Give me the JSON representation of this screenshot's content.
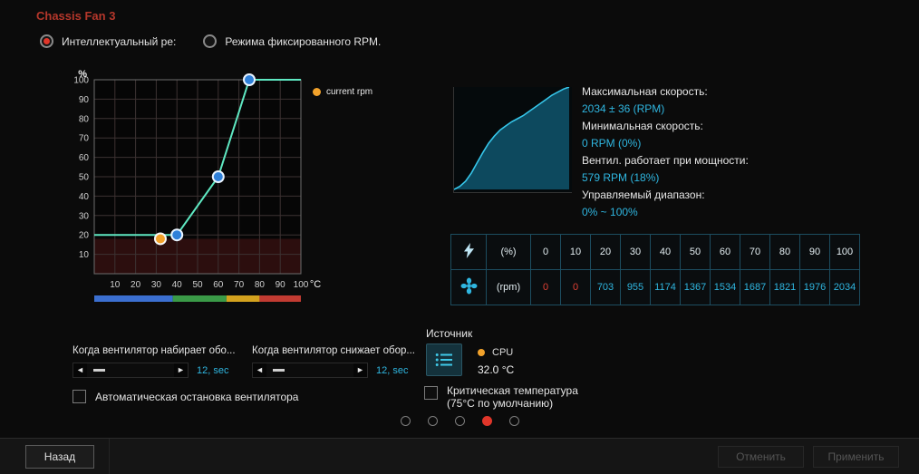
{
  "header": {
    "title": "Chassis Fan 3",
    "mode_smart": "Интеллектуальный ре:",
    "mode_fixed": "Режима фиксированного RPM."
  },
  "colors": {
    "accent_cyan": "#2fb6e0",
    "accent_red": "#e0362a",
    "accent_orange": "#f2a22b",
    "curve_green": "#5fe8c2",
    "point_blue": "#2f80d9",
    "grid": "#3c3232",
    "danger_zone_fill": "#2c0e0e",
    "response_stroke": "#36c6ea",
    "response_fill": "#0d495e"
  },
  "chart_data": [
    {
      "type": "line",
      "title": "Chassis Fan 3 fan curve",
      "xlabel": "°C",
      "ylabel": "%",
      "xlim": [
        0,
        100
      ],
      "ylim": [
        0,
        100
      ],
      "x_ticks": [
        10,
        20,
        30,
        40,
        50,
        60,
        70,
        80,
        90,
        100
      ],
      "y_ticks": [
        10,
        20,
        30,
        40,
        50,
        60,
        70,
        80,
        90,
        100
      ],
      "curve_points": [
        [
          0,
          20
        ],
        [
          40,
          20
        ],
        [
          60,
          50
        ],
        [
          75,
          100
        ],
        [
          100,
          100
        ]
      ],
      "control_points": [
        [
          40,
          20
        ],
        [
          60,
          50
        ],
        [
          75,
          100
        ]
      ],
      "current_point": {
        "x": 32,
        "y": 18
      },
      "legend": "current rpm",
      "temp_zones": [
        {
          "to": 38,
          "color": "#3b6fd0"
        },
        {
          "to": 64,
          "color": "#3a9a47"
        },
        {
          "to": 80,
          "color": "#d4a21e"
        },
        {
          "to": 100,
          "color": "#c23b32"
        }
      ]
    },
    {
      "type": "area",
      "title": "Fan response preview",
      "x": [
        0,
        5,
        10,
        15,
        20,
        25,
        30,
        35,
        40,
        45,
        50,
        55,
        60,
        65,
        70,
        75,
        80,
        85,
        90,
        95,
        100
      ],
      "values": [
        0,
        3,
        8,
        16,
        26,
        36,
        45,
        52,
        58,
        62,
        66,
        69,
        72,
        76,
        80,
        84,
        88,
        92,
        95,
        98,
        100
      ]
    }
  ],
  "stats": [
    {
      "label": "Максимальная скорость:",
      "value": "2034 ± 36 (RPM)"
    },
    {
      "label": "Минимальная скорость:",
      "value": "0 RPM (0%)"
    },
    {
      "label": "Вентил. работает при мощности:",
      "value": "579 RPM (18%)"
    },
    {
      "label": "Управляемый диапазон:",
      "value": "0% ~ 100%"
    }
  ],
  "table": {
    "row1_label": "(%)",
    "row2_label": "(rpm)",
    "percent": [
      0,
      10,
      20,
      30,
      40,
      50,
      60,
      70,
      80,
      90,
      100
    ],
    "rpm": [
      0,
      0,
      703,
      955,
      1174,
      1367,
      1534,
      1687,
      1821,
      1976,
      2034
    ]
  },
  "sliders": [
    {
      "label": "Когда вентилятор набирает обо...",
      "value": "12, sec"
    },
    {
      "label": "Когда вентилятор снижает обор...",
      "value": "12, sec"
    }
  ],
  "source": {
    "label": "Источник",
    "sensor": "CPU",
    "temp": "32.0 °C"
  },
  "checkboxes": [
    {
      "label": "Автоматическая остановка вентилятора"
    },
    {
      "label": "Критическая температура",
      "label2": "(75°C по умолчанию)"
    }
  ],
  "pagination": {
    "count": 5,
    "active": 3
  },
  "footer": {
    "back": "Назад",
    "cancel": "Отменить",
    "apply": "Применить"
  }
}
